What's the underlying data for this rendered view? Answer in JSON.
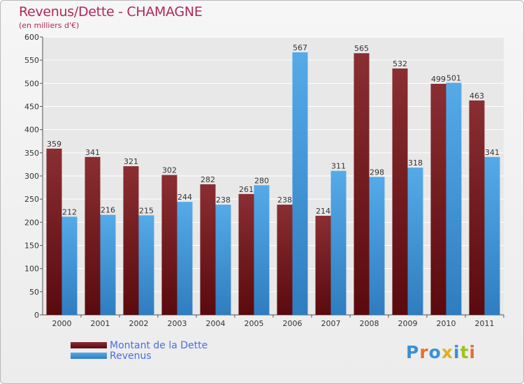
{
  "title": "Revenus/Dette - CHAMAGNE",
  "subtitle": "(en milliers d'€)",
  "legend": {
    "dette": "Montant de la Dette",
    "revenus": "Revenus"
  },
  "logo": {
    "text": "Proxiti",
    "colors": [
      "#3a8fd6",
      "#e8702a",
      "#3a8fd6",
      "#e0b020",
      "#3a8fd6",
      "#a0c020",
      "#e8702a"
    ]
  },
  "colors": {
    "dette": "#7a1f22",
    "revenus": "#4a9ee0",
    "title": "#b0285a"
  },
  "chart_data": {
    "type": "bar",
    "categories": [
      "2000",
      "2001",
      "2002",
      "2003",
      "2004",
      "2005",
      "2006",
      "2007",
      "2008",
      "2009",
      "2010",
      "2011"
    ],
    "series": [
      {
        "name": "Montant de la Dette",
        "values": [
          359,
          341,
          321,
          302,
          282,
          261,
          238,
          214,
          565,
          532,
          499,
          463
        ]
      },
      {
        "name": "Revenus",
        "values": [
          212,
          216,
          215,
          244,
          238,
          280,
          567,
          311,
          298,
          318,
          501,
          341
        ]
      }
    ],
    "ylim": [
      0,
      600
    ],
    "yticks": [
      0,
      50,
      100,
      150,
      200,
      250,
      300,
      350,
      400,
      450,
      500,
      550,
      600
    ],
    "grid": true,
    "legend_position": "bottom-left"
  }
}
